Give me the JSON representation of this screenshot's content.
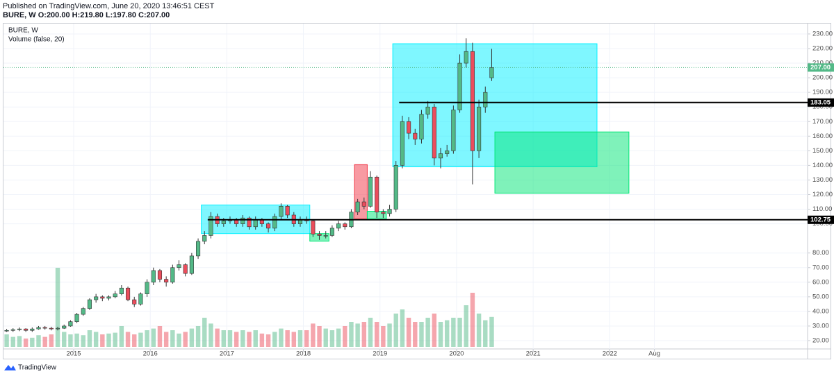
{
  "header": {
    "published": "Published on TradingView.com, June 20, 2020 13:46:51 CEST",
    "ohlc": "BURE, W  O:200.00 H:219.80 L:197.80 C:207.00"
  },
  "footer": {
    "brand": "TradingView"
  },
  "chart_data": {
    "type": "candlestick",
    "legend": [
      "BURE, W",
      "Volume (false, 20)"
    ],
    "x": [
      "2014-02",
      "2014-03",
      "2014-04",
      "2014-05",
      "2014-06",
      "2014-07",
      "2014-08",
      "2014-09",
      "2014-10",
      "2014-11",
      "2014-12",
      "2015-01",
      "2015-02",
      "2015-03",
      "2015-04",
      "2015-05",
      "2015-06",
      "2015-07",
      "2015-08",
      "2015-09",
      "2015-10",
      "2015-11",
      "2015-12",
      "2016-01",
      "2016-02",
      "2016-03",
      "2016-04",
      "2016-05",
      "2016-06",
      "2016-07",
      "2016-08",
      "2016-09",
      "2016-10",
      "2016-11",
      "2016-12",
      "2017-01",
      "2017-02",
      "2017-03",
      "2017-04",
      "2017-05",
      "2017-06",
      "2017-07",
      "2017-08",
      "2017-09",
      "2017-10",
      "2017-11",
      "2017-12",
      "2018-01",
      "2018-02",
      "2018-03",
      "2018-04",
      "2018-05",
      "2018-06",
      "2018-07",
      "2018-08",
      "2018-09",
      "2018-10",
      "2018-11",
      "2018-12",
      "2019-01",
      "2019-02",
      "2019-03",
      "2019-04",
      "2019-05",
      "2019-06",
      "2019-07",
      "2019-08",
      "2019-09",
      "2019-10",
      "2019-11",
      "2019-12",
      "2020-01",
      "2020-02",
      "2020-03",
      "2020-04",
      "2020-05",
      "2020-06"
    ],
    "open": [
      27,
      27,
      27.5,
      28,
      27,
      28,
      29,
      28.5,
      28,
      28.5,
      30,
      33,
      38,
      42,
      48,
      50,
      49,
      50,
      52,
      56,
      48,
      45,
      52,
      60,
      68,
      62,
      60,
      70,
      72,
      66,
      78,
      88,
      92,
      105,
      100,
      102,
      103,
      100,
      104,
      98,
      103,
      100,
      97,
      105,
      112,
      106,
      100,
      103,
      102,
      93,
      92,
      92,
      97,
      100,
      98,
      108,
      115,
      112,
      132,
      108,
      107,
      110,
      140,
      170,
      162,
      158,
      175,
      180,
      145,
      148,
      150,
      178,
      210,
      218,
      150,
      180,
      200
    ],
    "high": [
      28,
      28.5,
      29,
      28.5,
      29,
      30,
      30,
      29.5,
      29.5,
      31,
      34,
      39,
      43,
      49,
      52,
      51,
      51,
      54,
      58,
      57,
      50,
      53,
      62,
      70,
      69,
      64,
      72,
      75,
      73,
      80,
      90,
      95,
      108,
      107,
      104,
      105,
      104,
      106,
      105,
      105,
      104,
      101,
      107,
      114,
      113,
      108,
      105,
      105,
      103,
      95,
      95,
      99,
      102,
      101,
      110,
      117,
      118,
      136,
      133,
      110,
      113,
      143,
      174,
      173,
      165,
      178,
      184,
      182,
      152,
      154,
      181,
      216,
      227,
      224,
      185,
      194,
      219.8
    ],
    "low": [
      26,
      26,
      26.5,
      26,
      26,
      27.5,
      27.5,
      27,
      27,
      28,
      29.5,
      32,
      37,
      41,
      46,
      47,
      47.5,
      49,
      51,
      47,
      43,
      44,
      50,
      58,
      60,
      57,
      59,
      68,
      64,
      65,
      76,
      86,
      90,
      98,
      98,
      100,
      98,
      98,
      96,
      96,
      98,
      94,
      95,
      103,
      104,
      98,
      98,
      100,
      91,
      89,
      90,
      91,
      95,
      96,
      97,
      106,
      110,
      111,
      104,
      104,
      105,
      108,
      138,
      158,
      154,
      155,
      172,
      140,
      138,
      146,
      148,
      176,
      207,
      127,
      145,
      176,
      197.8
    ],
    "close": [
      27,
      27.5,
      28,
      27,
      28,
      29,
      28.5,
      28,
      28.5,
      30,
      33,
      38,
      42,
      48,
      50,
      49,
      50,
      52,
      56,
      48,
      45,
      52,
      60,
      68,
      62,
      60,
      70,
      72,
      66,
      78,
      88,
      92,
      105,
      100,
      102,
      103,
      100,
      104,
      98,
      103,
      100,
      97,
      105,
      112,
      106,
      100,
      103,
      102,
      93,
      92,
      92,
      97,
      100,
      98,
      108,
      115,
      112,
      132,
      108,
      107,
      110,
      140,
      170,
      162,
      158,
      175,
      180,
      145,
      148,
      150,
      178,
      210,
      218,
      150,
      180,
      190,
      207
    ],
    "volume": [
      1.5,
      1.2,
      1.3,
      1,
      1.1,
      1.4,
      1.2,
      1.5,
      9.5,
      1.8,
      1.5,
      1.6,
      1.4,
      2,
      1.8,
      1.5,
      1.6,
      1.7,
      2.5,
      1.8,
      1.5,
      1.7,
      2,
      2.2,
      2.5,
      1.8,
      2,
      1.6,
      1.8,
      2.2,
      2.5,
      3.5,
      2.8,
      2.2,
      2,
      2,
      1.8,
      2,
      1.8,
      2,
      1.6,
      1.5,
      1.8,
      2.2,
      2,
      1.8,
      2,
      2,
      2.8,
      2.5,
      2.2,
      2,
      2.2,
      2.5,
      3,
      2.8,
      3,
      3.5,
      3,
      2.5,
      2.8,
      4,
      4.5,
      3.5,
      3,
      3,
      3.5,
      4,
      3,
      3.2,
      3.5,
      3.5,
      5,
      6.5,
      4,
      3.2,
      3.6
    ],
    "volume_ylim": [
      0,
      10
    ],
    "up_color": "#53b987",
    "down_color": "#eb4d5c",
    "xlim": [
      "2014-02",
      "2024-08"
    ],
    "xticks": [
      {
        "value": "2015-01",
        "label": "2015"
      },
      {
        "value": "2016-01",
        "label": "2016"
      },
      {
        "value": "2017-01",
        "label": "2017"
      },
      {
        "value": "2018-01",
        "label": "2018"
      },
      {
        "value": "2019-01",
        "label": "2019"
      },
      {
        "value": "2020-01",
        "label": "2020"
      },
      {
        "value": "2021-01",
        "label": "2021"
      },
      {
        "value": "2022-01",
        "label": "2022"
      },
      {
        "value": "2022-08",
        "label": "Aug"
      }
    ],
    "ylim": [
      14.3,
      237.1
    ],
    "yticks": [
      {
        "value": 20,
        "label": "20.00"
      },
      {
        "value": 30,
        "label": "30.00"
      },
      {
        "value": 40,
        "label": "40.00"
      },
      {
        "value": 50,
        "label": "50.00"
      },
      {
        "value": 60,
        "label": "60.00"
      },
      {
        "value": 70,
        "label": "70.00"
      },
      {
        "value": 80,
        "label": "80.00"
      },
      {
        "value": 100,
        "label": "100.00"
      },
      {
        "value": 110,
        "label": "110.00"
      },
      {
        "value": 120,
        "label": "120.00"
      },
      {
        "value": 130,
        "label": "130.00"
      },
      {
        "value": 140,
        "label": "140.00"
      },
      {
        "value": 150,
        "label": "150.00"
      },
      {
        "value": 160,
        "label": "160.00"
      },
      {
        "value": 170,
        "label": "170.00"
      },
      {
        "value": 180,
        "label": "180.00"
      },
      {
        "value": 190,
        "label": "190.00"
      },
      {
        "value": 200,
        "label": "200.00"
      },
      {
        "value": 210,
        "label": "210.00"
      },
      {
        "value": 220,
        "label": "220.00"
      },
      {
        "value": 230,
        "label": "230.00"
      }
    ],
    "grid": true,
    "boxes": [
      {
        "from": "2016-09",
        "to": "2018-02",
        "low": 93.3,
        "high": 112.9,
        "color": "#00f0ff"
      },
      {
        "from": "2018-02",
        "to": "2018-05",
        "low": 88.1,
        "high": 93.3,
        "color": "#00e676"
      },
      {
        "from": "2018-09",
        "to": "2018-11",
        "low": 103.3,
        "high": 140.5,
        "color": "#f23645"
      },
      {
        "from": "2018-11",
        "to": "2019-02",
        "low": 103.3,
        "high": 108.6,
        "color": "#00e676"
      },
      {
        "from": "2019-03",
        "to": "2021-11",
        "low": 139,
        "high": 223.3,
        "color": "#00f0ff"
      },
      {
        "from": "2020-07",
        "to": "2022-04",
        "low": 121,
        "high": 162.9,
        "color": "#00e676"
      }
    ],
    "hlines": [
      {
        "value": 183.05,
        "label": "183.05",
        "from": "2019-04"
      },
      {
        "value": 102.75,
        "label": "102.75",
        "from": "2016-10"
      }
    ],
    "last_price": {
      "value": 207,
      "label": "207.00",
      "color": "#53b987"
    }
  }
}
